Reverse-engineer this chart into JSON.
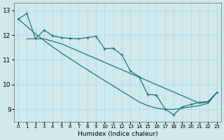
{
  "xlabel": "Humidex (Indice chaleur)",
  "bg_color": "#cfe9ec",
  "grid_color": "#b2d8dc",
  "line_color": "#1e7a72",
  "xlim_min": -0.5,
  "xlim_max": 23.5,
  "ylim_min": 8.5,
  "ylim_max": 13.3,
  "yticks": [
    9,
    10,
    11,
    12,
    13
  ],
  "xticks": [
    0,
    1,
    2,
    3,
    4,
    5,
    6,
    7,
    8,
    9,
    10,
    11,
    12,
    13,
    14,
    15,
    16,
    17,
    18,
    19,
    20,
    21,
    22,
    23
  ],
  "curve1_x": [
    0,
    1,
    2,
    3,
    4,
    5,
    6,
    7,
    8,
    9,
    10,
    11,
    12,
    13,
    14,
    15,
    16,
    17,
    18,
    19,
    20,
    21,
    22,
    23
  ],
  "curve1_y": [
    12.65,
    12.87,
    11.85,
    12.2,
    11.97,
    11.9,
    11.87,
    11.85,
    11.9,
    11.95,
    11.45,
    11.47,
    11.2,
    10.55,
    10.32,
    9.6,
    9.58,
    9.02,
    8.78,
    9.1,
    9.2,
    9.28,
    9.32,
    9.68
  ],
  "curve2_x": [
    0,
    1,
    2,
    3,
    4,
    5,
    6,
    7,
    8,
    9,
    10,
    11,
    12,
    13,
    14,
    15,
    16,
    17,
    18,
    19,
    20,
    21,
    22,
    23
  ],
  "curve2_y": [
    12.65,
    12.35,
    12.05,
    11.78,
    11.52,
    11.28,
    11.05,
    10.82,
    10.6,
    10.38,
    10.16,
    9.95,
    9.73,
    9.52,
    9.3,
    9.15,
    9.05,
    9.0,
    9.0,
    9.05,
    9.1,
    9.15,
    9.25,
    9.68
  ],
  "curve3_x": [
    1,
    2,
    3,
    4,
    5,
    6,
    7,
    8,
    9,
    10,
    11,
    12,
    13,
    14,
    15,
    16,
    17,
    18,
    19,
    20,
    21,
    22,
    23
  ],
  "curve3_y": [
    11.85,
    11.85,
    11.85,
    11.75,
    11.65,
    11.5,
    11.35,
    11.2,
    11.05,
    10.9,
    10.75,
    10.6,
    10.45,
    10.3,
    10.15,
    10.0,
    9.85,
    9.7,
    9.55,
    9.4,
    9.25,
    9.3,
    9.68
  ]
}
